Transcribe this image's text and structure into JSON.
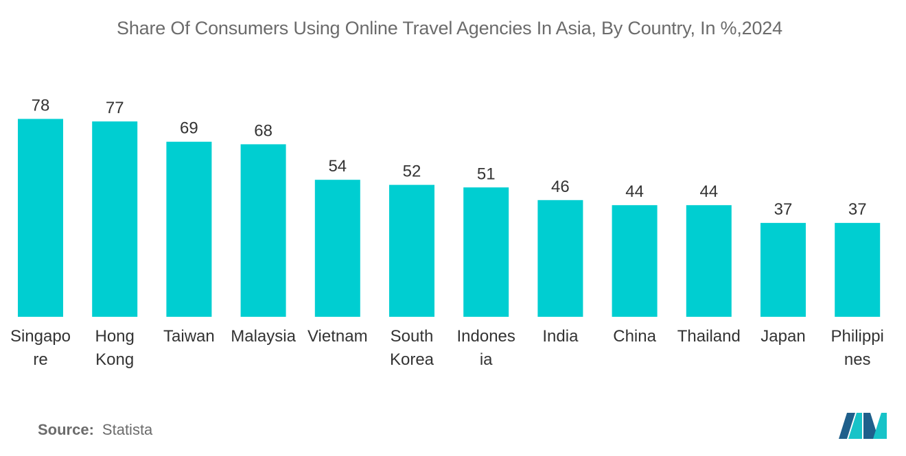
{
  "title": "Share Of Consumers Using Online Travel Agencies In Asia, By Country, In %,2024",
  "source": {
    "label": "Source:",
    "value": "Statista"
  },
  "colors": {
    "bar": "#00CED1",
    "text": "#333333",
    "muted": "#6b6b6b",
    "logo_dark": "#1f5f8b",
    "logo_light": "#17c3c8"
  },
  "chart_data": {
    "type": "bar",
    "categories": [
      [
        "Singapo",
        "re"
      ],
      [
        "Hong",
        "Kong"
      ],
      [
        "Taiwan"
      ],
      [
        "Malaysia"
      ],
      [
        "Vietnam"
      ],
      [
        "South",
        "Korea"
      ],
      [
        "Indones",
        "ia"
      ],
      [
        "India"
      ],
      [
        "China"
      ],
      [
        "Thailand"
      ],
      [
        "Japan"
      ],
      [
        "Philippi",
        "nes"
      ]
    ],
    "values": [
      78,
      77,
      69,
      68,
      54,
      52,
      51,
      46,
      44,
      44,
      37,
      37
    ],
    "title": "Share Of Consumers Using Online Travel Agencies In Asia, By Country, In %,2024",
    "xlabel": "",
    "ylabel": "",
    "ylim": [
      0,
      78
    ],
    "grid": false,
    "data_labels": true
  }
}
